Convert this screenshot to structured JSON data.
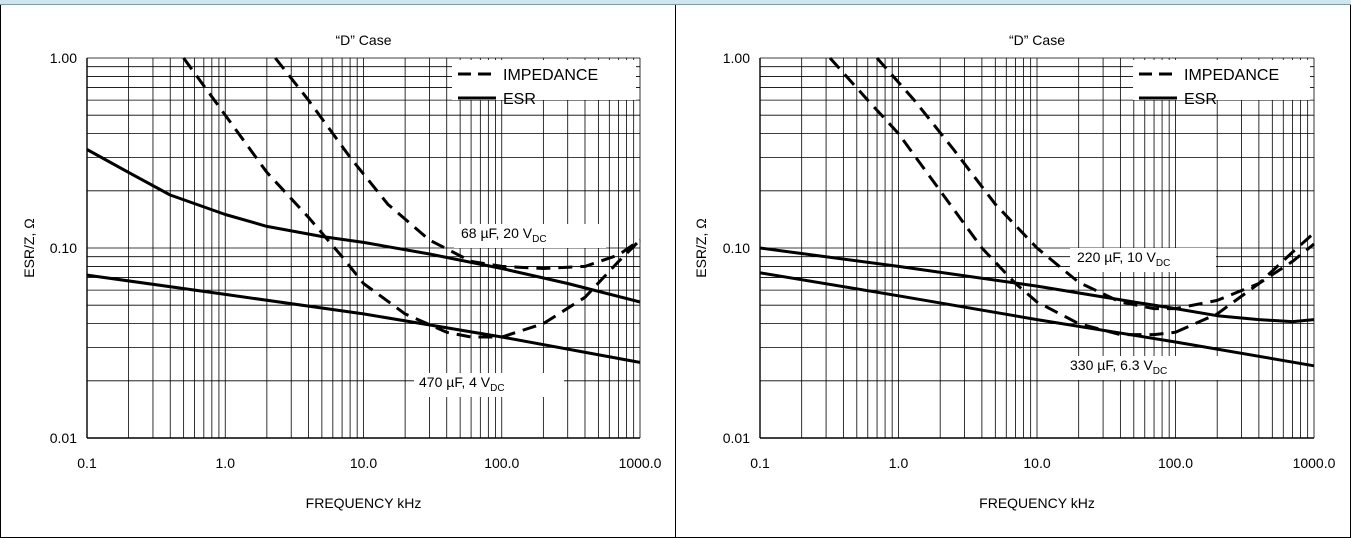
{
  "chart_data": [
    {
      "type": "line",
      "title": "“D” Case",
      "xlabel": "FREQUENCY kHz",
      "ylabel": "ESR/Z, Ω",
      "x_scale": "log",
      "y_scale": "log",
      "xlim": [
        0.1,
        1000
      ],
      "ylim": [
        0.01,
        1
      ],
      "x_tick_labels": [
        "0.1",
        "1.0",
        "10.0",
        "100.0",
        "1000.0"
      ],
      "y_tick_labels": [
        "0.01",
        "0.10",
        "1.00"
      ],
      "grid": true,
      "legend": {
        "position": "top-right",
        "entries": [
          {
            "label": "IMPEDANCE",
            "style": "dashed"
          },
          {
            "label": "ESR",
            "style": "solid"
          }
        ]
      },
      "annotations": [
        {
          "text": "68 µF, 20 V",
          "sub": "DC"
        },
        {
          "text": "470 µF, 4 V",
          "sub": "DC"
        }
      ],
      "series": [
        {
          "style": "dashed",
          "x": [
            0.5,
            1,
            2,
            4,
            7,
            10,
            20,
            40,
            60,
            100
          ],
          "y": [
            1.0,
            0.5,
            0.25,
            0.145,
            0.09,
            0.065,
            0.045,
            0.036,
            0.034,
            0.034
          ]
        },
        {
          "style": "dashed",
          "x": [
            100,
            200,
            400,
            700,
            1000
          ],
          "y": [
            0.034,
            0.04,
            0.055,
            0.085,
            0.11
          ]
        },
        {
          "style": "dashed",
          "x": [
            2.3,
            4,
            8,
            15,
            30,
            60,
            100,
            200,
            400,
            700,
            1000
          ],
          "y": [
            1.0,
            0.6,
            0.3,
            0.17,
            0.11,
            0.085,
            0.08,
            0.078,
            0.08,
            0.092,
            0.11
          ]
        },
        {
          "style": "solid",
          "x": [
            0.1,
            0.2,
            0.4,
            1,
            2,
            5,
            10,
            30,
            100,
            300,
            1000
          ],
          "y": [
            0.33,
            0.25,
            0.19,
            0.15,
            0.13,
            0.115,
            0.107,
            0.093,
            0.078,
            0.065,
            0.052
          ]
        },
        {
          "style": "solid",
          "x": [
            0.1,
            1,
            10,
            100,
            1000
          ],
          "y": [
            0.072,
            0.057,
            0.045,
            0.034,
            0.025
          ]
        }
      ]
    },
    {
      "type": "line",
      "title": "“D” Case",
      "xlabel": "FREQUENCY kHz",
      "ylabel": "ESR/Z, Ω",
      "x_scale": "log",
      "y_scale": "log",
      "xlim": [
        0.1,
        1000
      ],
      "ylim": [
        0.01,
        1
      ],
      "x_tick_labels": [
        "0.1",
        "1.0",
        "10.0",
        "100.0",
        "1000.0"
      ],
      "y_tick_labels": [
        "0.01",
        "0.10",
        "1.00"
      ],
      "grid": true,
      "legend": {
        "position": "top-right",
        "entries": [
          {
            "label": "IMPEDANCE",
            "style": "dashed"
          },
          {
            "label": "ESR",
            "style": "solid"
          }
        ]
      },
      "annotations": [
        {
          "text": "220 µF, 10 V",
          "sub": "DC"
        },
        {
          "text": "330 µF, 6.3 V",
          "sub": "DC"
        }
      ],
      "series": [
        {
          "style": "dashed",
          "x": [
            0.32,
            0.6,
            1,
            2,
            4,
            7,
            10,
            20,
            40,
            70,
            100
          ],
          "y": [
            1.0,
            0.6,
            0.4,
            0.2,
            0.1,
            0.065,
            0.052,
            0.04,
            0.035,
            0.035,
            0.036
          ]
        },
        {
          "style": "dashed",
          "x": [
            100,
            200,
            400,
            700,
            1000
          ],
          "y": [
            0.036,
            0.045,
            0.065,
            0.095,
            0.12
          ]
        },
        {
          "style": "dashed",
          "x": [
            0.7,
            1.3,
            2.5,
            5,
            10,
            20,
            40,
            70,
            100,
            200,
            400,
            700,
            1000
          ],
          "y": [
            1.0,
            0.6,
            0.33,
            0.17,
            0.1,
            0.066,
            0.052,
            0.048,
            0.048,
            0.053,
            0.065,
            0.085,
            0.105
          ]
        },
        {
          "style": "solid",
          "x": [
            0.1,
            1,
            10,
            50,
            100,
            200,
            400,
            700,
            1000
          ],
          "y": [
            0.1,
            0.08,
            0.063,
            0.052,
            0.048,
            0.044,
            0.042,
            0.041,
            0.042
          ]
        },
        {
          "style": "solid",
          "x": [
            0.1,
            1,
            10,
            100,
            1000
          ],
          "y": [
            0.074,
            0.056,
            0.042,
            0.032,
            0.024
          ]
        }
      ]
    }
  ]
}
